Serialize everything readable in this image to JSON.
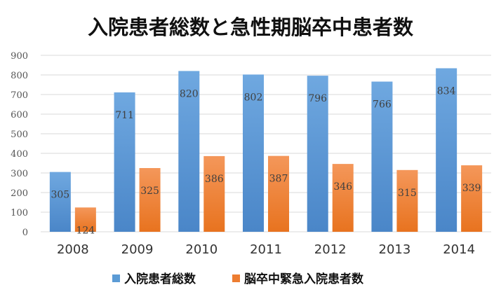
{
  "chart_data": {
    "type": "bar",
    "title": "入院患者総数と急性期脳卒中患者数",
    "categories": [
      "2008",
      "2009",
      "2010",
      "2011",
      "2012",
      "2013",
      "2014"
    ],
    "series": [
      {
        "name": "入院患者総数",
        "values": [
          305,
          711,
          820,
          802,
          796,
          766,
          834
        ],
        "color": "#5b9bd5"
      },
      {
        "name": "脳卒中緊急入院患者数",
        "values": [
          124,
          325,
          386,
          387,
          346,
          315,
          339
        ],
        "color": "#ed7d31"
      }
    ],
    "ylim": [
      0,
      900
    ],
    "yticks": [
      "0",
      "100",
      "200",
      "300",
      "400",
      "500",
      "600",
      "700",
      "800",
      "900"
    ],
    "grid": true,
    "legend_position": "bottom"
  }
}
